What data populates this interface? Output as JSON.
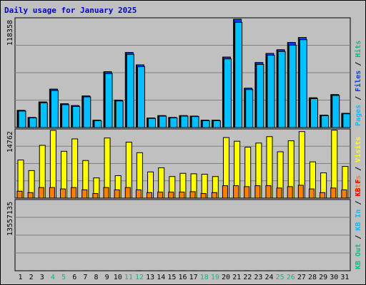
{
  "chart_data": {
    "type": "bar",
    "title": "Daily usage for January 2025",
    "categories": [
      "1",
      "2",
      "3",
      "4",
      "5",
      "6",
      "7",
      "8",
      "9",
      "10",
      "11",
      "12",
      "13",
      "14",
      "15",
      "16",
      "17",
      "18",
      "19",
      "20",
      "21",
      "22",
      "23",
      "24",
      "25",
      "26",
      "27",
      "28",
      "29",
      "30",
      "31"
    ],
    "weekend_days": [
      "4",
      "5",
      "11",
      "12",
      "18",
      "19",
      "25",
      "26"
    ],
    "colors": {
      "background": "#c0c0c0",
      "title": "#0000c0",
      "pages": "#00c0ff",
      "files": "#0040ff",
      "hits": "#00c080",
      "visits": "#ffff00",
      "sites": "#ff8000",
      "kb": "#ff0000",
      "kb_in": "#00c0ff",
      "kb_out": "#00c080",
      "weekend_label": "#00c080",
      "weekday_label": "#000000"
    },
    "panels": [
      {
        "name": "hits-files-pages",
        "axis_max_label": "118358",
        "ylim": [
          0,
          118358
        ],
        "legend": [
          {
            "text": "Hits",
            "color": "#00c080"
          },
          {
            "text": "Files",
            "color": "#0040ff"
          },
          {
            "text": "Pages",
            "color": "#00c0ff"
          }
        ],
        "series": [
          {
            "key": "hits",
            "values": [
              18800,
              11000,
              28000,
              42000,
              26000,
              24000,
              34500,
              8000,
              61000,
              30000,
              82000,
              68500,
              10500,
              13000,
              11000,
              13000,
              12500,
              8000,
              8000,
              77000,
              118358,
              43000,
              71000,
              81000,
              85000,
              93000,
              98500,
              32500,
              13500,
              36000,
              15500
            ]
          },
          {
            "key": "files",
            "values": [
              18800,
              11000,
              28000,
              42000,
              26000,
              24000,
              34500,
              8000,
              61000,
              30000,
              82000,
              68500,
              10500,
              13000,
              11000,
              13000,
              12500,
              8000,
              8000,
              77000,
              118358,
              43000,
              71000,
              81000,
              85000,
              93000,
              98500,
              32500,
              13500,
              36000,
              15500
            ]
          },
          {
            "key": "pages",
            "values": [
              18000,
              10500,
              27000,
              40500,
              25000,
              23000,
              33500,
              7500,
              59000,
              29000,
              80000,
              66500,
              10000,
              12500,
              10500,
              12500,
              12000,
              7500,
              7500,
              75000,
              115000,
              41500,
              69000,
              79000,
              83000,
              90000,
              96000,
              31500,
              13000,
              35000,
              15000
            ]
          }
        ]
      },
      {
        "name": "visits-sites",
        "axis_max_label": "14762",
        "ylim": [
          0,
          14762
        ],
        "legend": [
          {
            "text": "Visits",
            "color": "#ffff00"
          },
          {
            "text": "Sites",
            "color": "#ff8000"
          }
        ],
        "series": [
          {
            "key": "visits",
            "values": [
              8300,
              6000,
              11500,
              14762,
              10200,
              12900,
              8200,
              4400,
              13100,
              4900,
              12200,
              9900,
              5700,
              6600,
              4700,
              5400,
              5300,
              5200,
              4700,
              13200,
              12400,
              11100,
              12000,
              13400,
              10100,
              12500,
              14500,
              7900,
              5500,
              14800,
              6900
            ]
          },
          {
            "key": "sites",
            "values": [
              1500,
              1200,
              2300,
              2300,
              2000,
              2300,
              1800,
              1000,
              2300,
              1800,
              2300,
              1800,
              1200,
              1300,
              1300,
              1300,
              1400,
              1000,
              1200,
              2700,
              2700,
              2500,
              2700,
              2700,
              2200,
              2500,
              2800,
              2000,
              1200,
              2200,
              1800
            ]
          }
        ]
      },
      {
        "name": "kb",
        "axis_max_label": "13557135",
        "ylim": [
          0,
          13557135
        ],
        "legend": [
          {
            "text": "KB F",
            "color": "#ff0000"
          },
          {
            "text": "KB In",
            "color": "#00c0ff"
          },
          {
            "text": "KB Out",
            "color": "#00c080"
          }
        ],
        "series": [
          {
            "key": "kb",
            "values": [
              5000,
              4500,
              3000,
              3200,
              7500,
              3000,
              9500,
              4300,
              5000,
              5500,
              5700,
              15000,
              4500,
              5500,
              6800,
              8400,
              5500,
              4800,
              3200,
              5500,
              6500,
              12400,
              5500,
              5100,
              5800,
              5700,
              6100,
              11500,
              5800,
              4500,
              4300
            ]
          }
        ]
      }
    ]
  }
}
